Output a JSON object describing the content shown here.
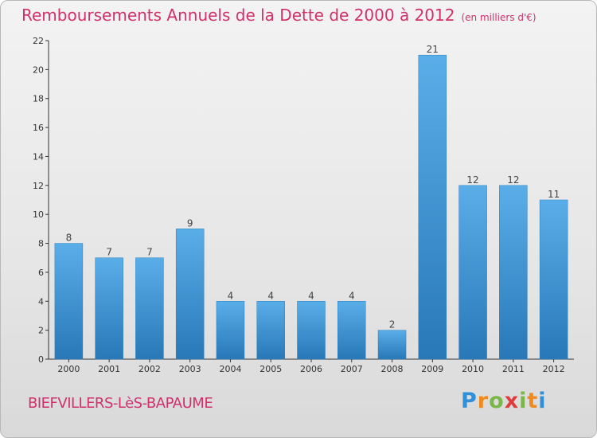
{
  "chart_data": {
    "type": "bar",
    "title": "Remboursements Annuels de la Dette de 2000 à 2012",
    "unit_note": "(en milliers d'€)",
    "categories": [
      "2000",
      "2001",
      "2002",
      "2003",
      "2004",
      "2005",
      "2006",
      "2007",
      "2008",
      "2009",
      "2010",
      "2011",
      "2012"
    ],
    "values": [
      8,
      7,
      7,
      9,
      4,
      4,
      4,
      4,
      2,
      21,
      12,
      12,
      11
    ],
    "ylim": [
      0,
      22
    ],
    "yticks": [
      0,
      2,
      4,
      6,
      8,
      10,
      12,
      14,
      16,
      18,
      20,
      22
    ],
    "grid": false,
    "bar_color_top": "#5aaee8",
    "bar_color_bottom": "#2878b8"
  },
  "commune": "BIEFVILLERS-LèS-BAPAUME",
  "brand": "Proxiti",
  "colors": {
    "title": "#d0316b",
    "axis": "#333333"
  }
}
